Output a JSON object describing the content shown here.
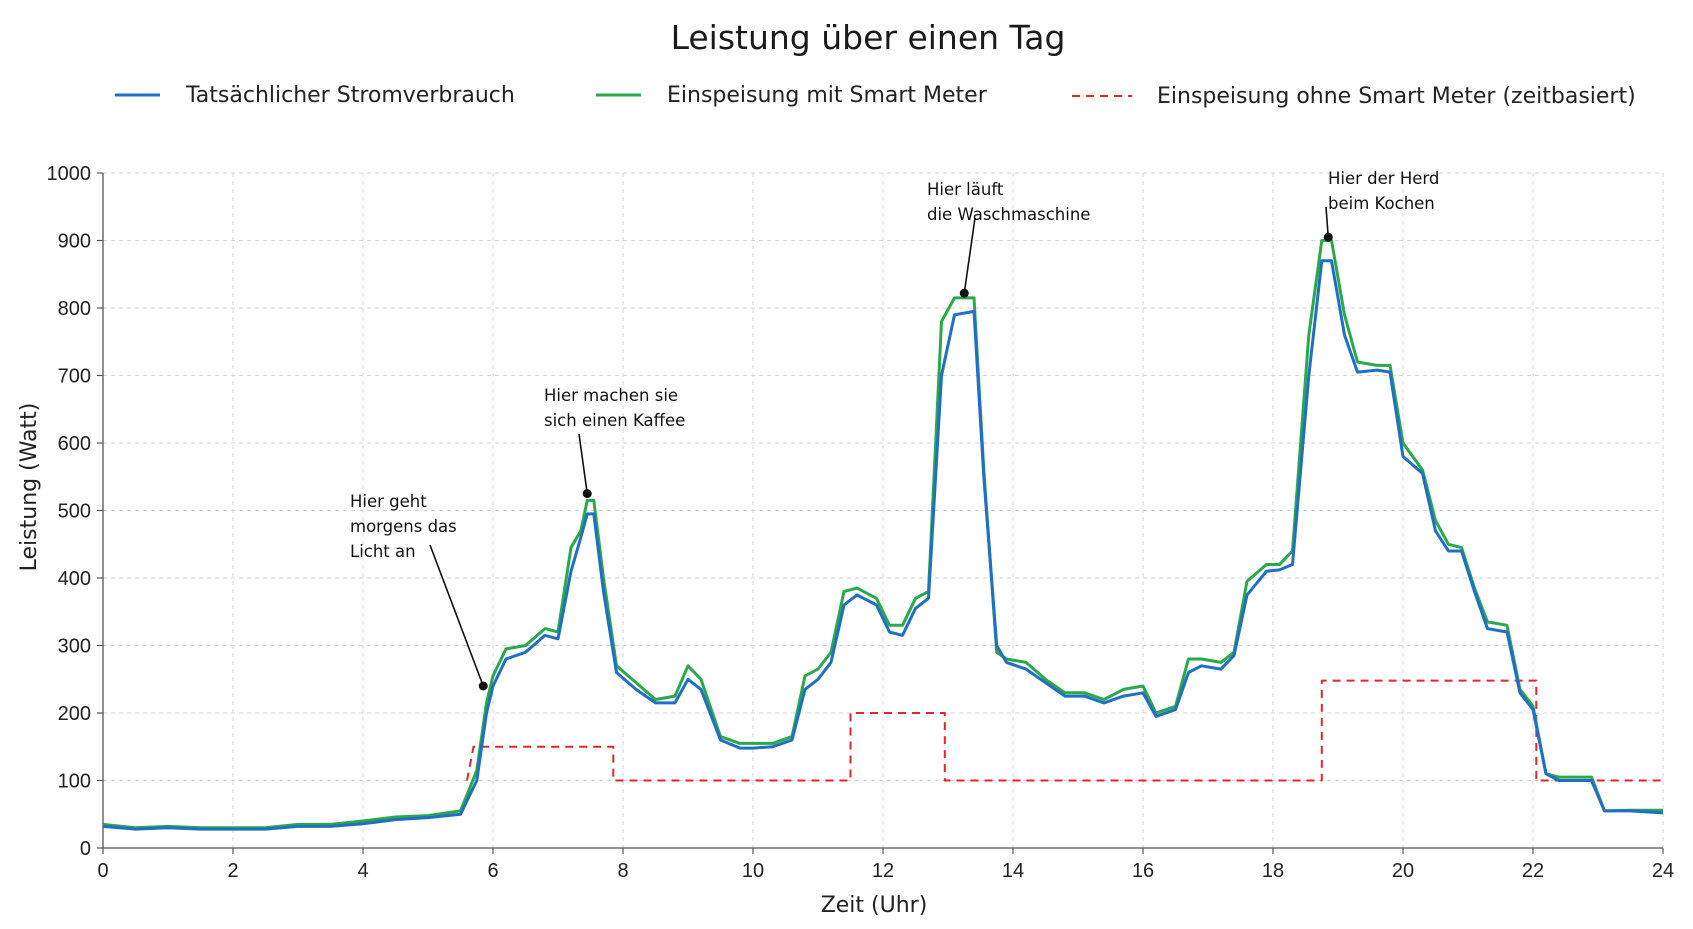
{
  "chart_data": {
    "type": "line",
    "title": "Leistung über einen Tag",
    "xlabel": "Zeit (Uhr)",
    "ylabel": "Leistung (Watt)",
    "xlim": [
      0,
      24
    ],
    "ylim": [
      0,
      1000
    ],
    "xticks": [
      0,
      2,
      4,
      6,
      8,
      10,
      12,
      14,
      16,
      18,
      20,
      22,
      24
    ],
    "yticks": [
      0,
      100,
      200,
      300,
      400,
      500,
      600,
      700,
      800,
      900,
      1000
    ],
    "grid": true,
    "legend_position": "top",
    "series": [
      {
        "name": "Tatsächlicher Stromverbrauch",
        "color": "#1f6fc4",
        "style": "solid",
        "points": [
          [
            0,
            32
          ],
          [
            0.5,
            28
          ],
          [
            1,
            30
          ],
          [
            1.5,
            28
          ],
          [
            2,
            28
          ],
          [
            2.5,
            28
          ],
          [
            3,
            32
          ],
          [
            3.5,
            32
          ],
          [
            4,
            36
          ],
          [
            4.5,
            42
          ],
          [
            5,
            45
          ],
          [
            5.5,
            50
          ],
          [
            5.75,
            100
          ],
          [
            5.9,
            200
          ],
          [
            6,
            240
          ],
          [
            6.2,
            280
          ],
          [
            6.5,
            290
          ],
          [
            6.8,
            315
          ],
          [
            7,
            310
          ],
          [
            7.2,
            410
          ],
          [
            7.35,
            460
          ],
          [
            7.45,
            495
          ],
          [
            7.55,
            495
          ],
          [
            7.7,
            380
          ],
          [
            7.9,
            260
          ],
          [
            8.2,
            235
          ],
          [
            8.5,
            215
          ],
          [
            8.8,
            215
          ],
          [
            9,
            250
          ],
          [
            9.2,
            235
          ],
          [
            9.5,
            160
          ],
          [
            9.8,
            148
          ],
          [
            10,
            148
          ],
          [
            10.3,
            150
          ],
          [
            10.6,
            160
          ],
          [
            10.8,
            235
          ],
          [
            11,
            250
          ],
          [
            11.2,
            275
          ],
          [
            11.4,
            360
          ],
          [
            11.6,
            375
          ],
          [
            11.9,
            360
          ],
          [
            12.1,
            320
          ],
          [
            12.3,
            315
          ],
          [
            12.5,
            355
          ],
          [
            12.7,
            370
          ],
          [
            12.9,
            700
          ],
          [
            13.1,
            790
          ],
          [
            13.4,
            795
          ],
          [
            13.55,
            550
          ],
          [
            13.75,
            300
          ],
          [
            13.9,
            275
          ],
          [
            14.2,
            265
          ],
          [
            14.5,
            245
          ],
          [
            14.8,
            225
          ],
          [
            15.1,
            225
          ],
          [
            15.4,
            215
          ],
          [
            15.7,
            225
          ],
          [
            16,
            230
          ],
          [
            16.2,
            195
          ],
          [
            16.5,
            205
          ],
          [
            16.7,
            260
          ],
          [
            16.9,
            270
          ],
          [
            17.2,
            265
          ],
          [
            17.4,
            285
          ],
          [
            17.6,
            375
          ],
          [
            17.9,
            410
          ],
          [
            18.1,
            412
          ],
          [
            18.3,
            420
          ],
          [
            18.55,
            700
          ],
          [
            18.75,
            870
          ],
          [
            18.9,
            870
          ],
          [
            19.1,
            760
          ],
          [
            19.3,
            705
          ],
          [
            19.6,
            708
          ],
          [
            19.8,
            705
          ],
          [
            20,
            580
          ],
          [
            20.3,
            555
          ],
          [
            20.5,
            470
          ],
          [
            20.7,
            440
          ],
          [
            20.9,
            440
          ],
          [
            21.1,
            380
          ],
          [
            21.3,
            325
          ],
          [
            21.6,
            320
          ],
          [
            21.8,
            230
          ],
          [
            22,
            205
          ],
          [
            22.2,
            110
          ],
          [
            22.4,
            100
          ],
          [
            22.6,
            100
          ],
          [
            22.9,
            100
          ],
          [
            23.1,
            55
          ],
          [
            23.5,
            55
          ],
          [
            24,
            52
          ]
        ]
      },
      {
        "name": "Einspeisung mit Smart Meter",
        "color": "#2aa84a",
        "style": "solid",
        "points": [
          [
            0,
            35
          ],
          [
            0.5,
            30
          ],
          [
            1,
            32
          ],
          [
            1.5,
            30
          ],
          [
            2,
            30
          ],
          [
            2.5,
            30
          ],
          [
            3,
            35
          ],
          [
            3.5,
            35
          ],
          [
            4,
            40
          ],
          [
            4.5,
            46
          ],
          [
            5,
            48
          ],
          [
            5.5,
            55
          ],
          [
            5.75,
            115
          ],
          [
            5.9,
            215
          ],
          [
            6,
            255
          ],
          [
            6.2,
            295
          ],
          [
            6.5,
            300
          ],
          [
            6.8,
            325
          ],
          [
            7,
            320
          ],
          [
            7.2,
            445
          ],
          [
            7.35,
            470
          ],
          [
            7.45,
            515
          ],
          [
            7.55,
            515
          ],
          [
            7.7,
            400
          ],
          [
            7.9,
            270
          ],
          [
            8.2,
            245
          ],
          [
            8.5,
            220
          ],
          [
            8.8,
            225
          ],
          [
            9,
            270
          ],
          [
            9.2,
            250
          ],
          [
            9.5,
            165
          ],
          [
            9.8,
            155
          ],
          [
            10,
            155
          ],
          [
            10.3,
            155
          ],
          [
            10.6,
            165
          ],
          [
            10.8,
            255
          ],
          [
            11,
            265
          ],
          [
            11.2,
            290
          ],
          [
            11.4,
            380
          ],
          [
            11.6,
            385
          ],
          [
            11.9,
            370
          ],
          [
            12.1,
            330
          ],
          [
            12.3,
            330
          ],
          [
            12.5,
            370
          ],
          [
            12.7,
            380
          ],
          [
            12.9,
            780
          ],
          [
            13.1,
            815
          ],
          [
            13.4,
            815
          ],
          [
            13.55,
            560
          ],
          [
            13.75,
            290
          ],
          [
            13.9,
            280
          ],
          [
            14.2,
            275
          ],
          [
            14.5,
            250
          ],
          [
            14.8,
            230
          ],
          [
            15.1,
            230
          ],
          [
            15.4,
            220
          ],
          [
            15.7,
            235
          ],
          [
            16,
            240
          ],
          [
            16.2,
            200
          ],
          [
            16.5,
            210
          ],
          [
            16.7,
            280
          ],
          [
            16.9,
            280
          ],
          [
            17.2,
            275
          ],
          [
            17.4,
            290
          ],
          [
            17.6,
            395
          ],
          [
            17.9,
            420
          ],
          [
            18.1,
            420
          ],
          [
            18.3,
            440
          ],
          [
            18.55,
            760
          ],
          [
            18.75,
            900
          ],
          [
            18.9,
            900
          ],
          [
            19.1,
            790
          ],
          [
            19.3,
            720
          ],
          [
            19.6,
            715
          ],
          [
            19.8,
            715
          ],
          [
            20,
            600
          ],
          [
            20.3,
            560
          ],
          [
            20.5,
            485
          ],
          [
            20.7,
            450
          ],
          [
            20.9,
            445
          ],
          [
            21.1,
            385
          ],
          [
            21.3,
            335
          ],
          [
            21.6,
            330
          ],
          [
            21.8,
            235
          ],
          [
            22,
            210
          ],
          [
            22.2,
            110
          ],
          [
            22.4,
            105
          ],
          [
            22.6,
            105
          ],
          [
            22.9,
            105
          ],
          [
            23.1,
            55
          ],
          [
            23.5,
            56
          ],
          [
            24,
            56
          ]
        ]
      },
      {
        "name": "Einspeisung ohne Smart Meter (zeitbasiert)",
        "color": "#e0262b",
        "style": "dashed",
        "points": [
          [
            5.6,
            100
          ],
          [
            5.7,
            150
          ],
          [
            7.85,
            150
          ],
          [
            7.85,
            100
          ],
          [
            11.5,
            100
          ],
          [
            11.5,
            200
          ],
          [
            12.95,
            200
          ],
          [
            12.95,
            100
          ],
          [
            18.75,
            100
          ],
          [
            18.75,
            248
          ],
          [
            21.05,
            248
          ],
          [
            22.05,
            248
          ],
          [
            22.05,
            100
          ],
          [
            24,
            100
          ]
        ]
      }
    ],
    "annotations": [
      {
        "lines": [
          "Hier geht",
          "morgens das",
          "Licht an"
        ],
        "target": [
          5.85,
          240
        ]
      },
      {
        "lines": [
          "Hier machen sie",
          "sich einen Kaffee"
        ],
        "target": [
          7.45,
          525
        ]
      },
      {
        "lines": [
          "Hier läuft",
          "die Waschmaschine"
        ],
        "target": [
          13.25,
          822
        ]
      },
      {
        "lines": [
          "Hier der Herd",
          "beim Kochen"
        ],
        "target": [
          18.85,
          905
        ]
      }
    ]
  }
}
